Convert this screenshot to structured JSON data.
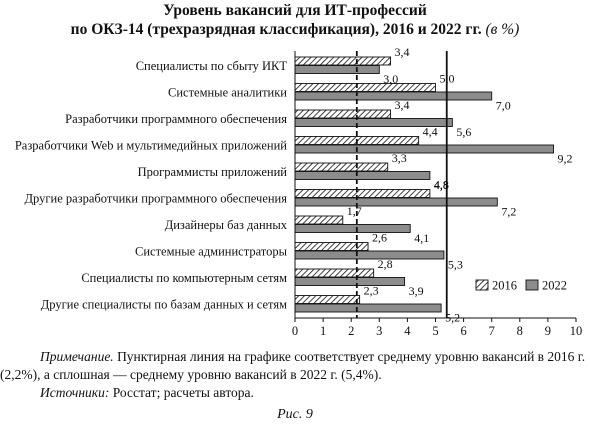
{
  "title_line1": "Уровень вакансий для ИТ-профессий",
  "title_line2": "по ОКЗ-14 (трехразрядная классификация), 2016 и 2022 гг.",
  "title_unit": "(в %)",
  "chart_data": {
    "type": "bar",
    "orientation": "horizontal",
    "categories": [
      "Специалисты по сбыту ИКТ",
      "Системные аналитики",
      "Разработчики программного обеспечения",
      "Разработчики Web и мультимедийных приложений",
      "Программисты приложений",
      "Другие разработчики программного обеспечения",
      "Дизайнеры баз данных",
      "Системные администраторы",
      "Специалисты по компьютерным сетям",
      "Другие специалисты по базам данных и сетям"
    ],
    "series": [
      {
        "name": "2016",
        "values": [
          3.4,
          5.0,
          3.4,
          4.4,
          3.3,
          4.8,
          1.7,
          2.6,
          2.8,
          2.3
        ],
        "labels": [
          "3,4",
          "5,0",
          "3,4",
          "4,4",
          "3,3",
          "4,8",
          "1,7",
          "2,6",
          "2,8",
          "2,3"
        ],
        "fill": "hatched"
      },
      {
        "name": "2022",
        "values": [
          3.0,
          7.0,
          5.6,
          9.2,
          4.8,
          7.2,
          4.1,
          5.3,
          3.9,
          5.2
        ],
        "labels": [
          "3,0",
          "7,0",
          "5,6",
          "9,2",
          "4,8",
          "7,2",
          "4,1",
          "5,3",
          "3,9",
          "5,2"
        ],
        "fill": "#8c8c8c"
      }
    ],
    "x_ticks": [
      "0",
      "1",
      "2",
      "3",
      "4",
      "5",
      "6",
      "7",
      "8",
      "9",
      "10"
    ],
    "xlim": [
      0,
      10
    ],
    "reference_lines": [
      {
        "value": 2.2,
        "style": "dashed"
      },
      {
        "value": 5.4,
        "style": "solid"
      }
    ],
    "legend_placement": "bottom-right",
    "grid": false
  },
  "note_label": "Примечание.",
  "note_text": "Пунктирная линия на графике соответствует среднему уровню вакансий в 2016 г. (2,2%), а сплошная — среднему уровню вакансий в 2022 г. (5,4%).",
  "sources_label": "Источники:",
  "sources_text": "Росстат; расчеты автора.",
  "figure_caption": "Рис. 9"
}
